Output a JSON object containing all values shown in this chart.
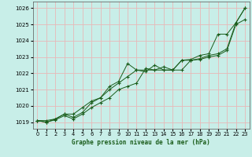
{
  "title": "Graphe pression niveau de la mer (hPa)",
  "background_color": "#c8eee8",
  "grid_color": "#e8b8b8",
  "line_color": "#1a5c1a",
  "xlim": [
    -0.5,
    23.5
  ],
  "ylim": [
    1018.6,
    1026.4
  ],
  "yticks": [
    1019,
    1020,
    1021,
    1022,
    1023,
    1024,
    1025,
    1026
  ],
  "xticks": [
    0,
    1,
    2,
    3,
    4,
    5,
    6,
    7,
    8,
    9,
    10,
    11,
    12,
    13,
    14,
    15,
    16,
    17,
    18,
    19,
    20,
    21,
    22,
    23
  ],
  "series": [
    [
      1019.1,
      1019.1,
      1019.2,
      1019.5,
      1019.3,
      1019.6,
      1020.2,
      1020.5,
      1021.0,
      1021.4,
      1021.8,
      1022.2,
      1022.2,
      1022.2,
      1022.2,
      1022.2,
      1022.8,
      1022.8,
      1022.9,
      1023.1,
      1023.2,
      1023.5,
      1025.1,
      1026.0
    ],
    [
      1019.1,
      1019.0,
      1019.15,
      1019.4,
      1019.2,
      1019.5,
      1019.9,
      1020.2,
      1020.5,
      1021.0,
      1021.2,
      1021.4,
      1022.3,
      1022.2,
      1022.4,
      1022.2,
      1022.2,
      1022.8,
      1022.85,
      1023.0,
      1023.1,
      1023.4,
      1025.0,
      1025.3
    ],
    [
      1019.1,
      1019.0,
      1019.2,
      1019.5,
      1019.5,
      1019.9,
      1020.3,
      1020.5,
      1021.2,
      1021.5,
      1022.6,
      1022.2,
      1022.1,
      1022.5,
      1022.2,
      1022.2,
      1022.8,
      1022.85,
      1023.1,
      1023.2,
      1024.4,
      1024.4,
      1025.1,
      1026.0
    ]
  ]
}
